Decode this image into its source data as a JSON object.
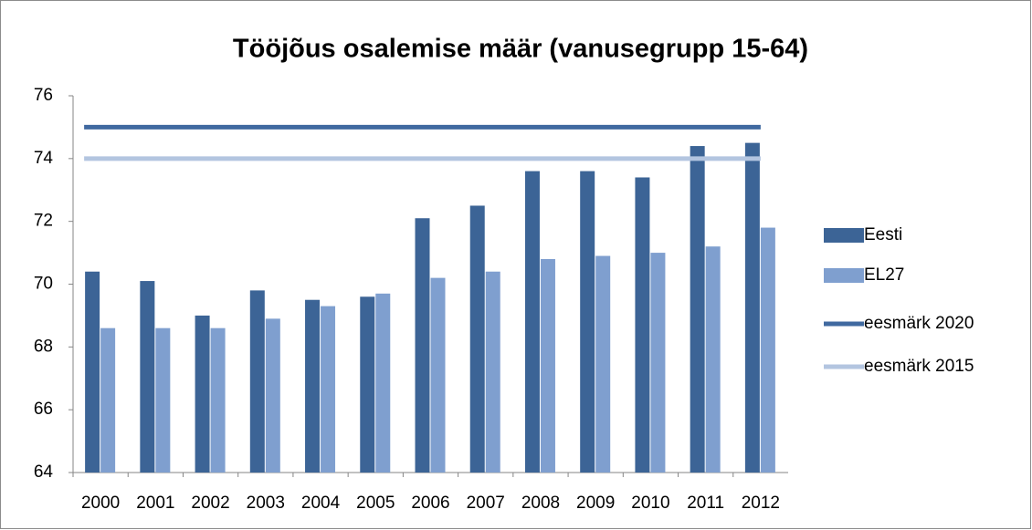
{
  "chart_data": {
    "type": "bar",
    "title": "Tööjõus osalemise määr (vanusegrupp 15-64)",
    "categories": [
      "2000",
      "2001",
      "2002",
      "2003",
      "2004",
      "2005",
      "2006",
      "2007",
      "2008",
      "2009",
      "2010",
      "2011",
      "2012"
    ],
    "series": [
      {
        "name": "Eesti",
        "type": "bar",
        "color": "#3c6496",
        "values": [
          70.4,
          70.1,
          69.0,
          69.8,
          69.5,
          69.6,
          72.1,
          72.5,
          73.6,
          73.6,
          73.4,
          74.4,
          74.5
        ]
      },
      {
        "name": "EL27",
        "type": "bar",
        "color": "#7f9fcf",
        "values": [
          68.6,
          68.6,
          68.6,
          68.9,
          69.3,
          69.7,
          70.2,
          70.4,
          70.8,
          70.9,
          71.0,
          71.2,
          71.8
        ]
      },
      {
        "name": "eesmärk 2020",
        "type": "line",
        "color": "#4069a0",
        "values": [
          75,
          75,
          75,
          75,
          75,
          75,
          75,
          75,
          75,
          75,
          75,
          75,
          75
        ]
      },
      {
        "name": "eesmärk 2015",
        "type": "line",
        "color": "#b3c5e0",
        "values": [
          74,
          74,
          74,
          74,
          74,
          74,
          74,
          74,
          74,
          74,
          74,
          74,
          74
        ]
      }
    ],
    "ylim": [
      64,
      76
    ],
    "yticks": [
      64,
      66,
      68,
      70,
      72,
      74,
      76
    ],
    "grid": false,
    "legend": "right"
  }
}
